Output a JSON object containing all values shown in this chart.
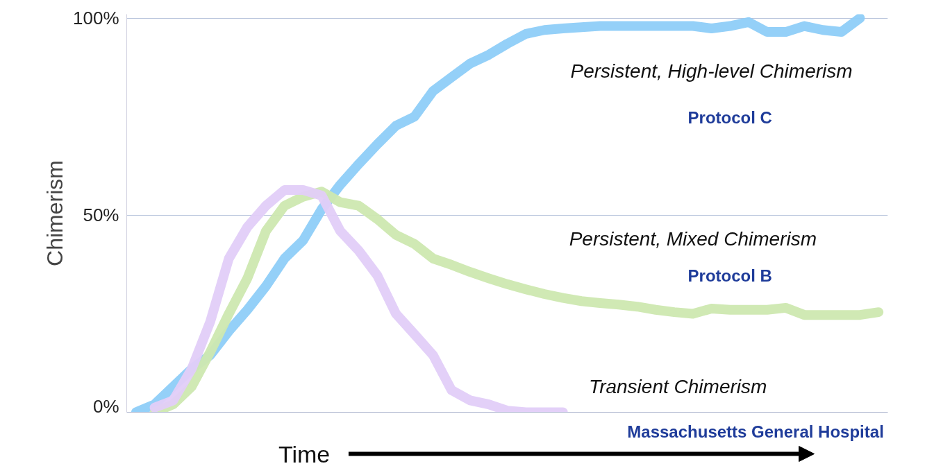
{
  "chart_data": {
    "type": "line",
    "ylabel": "Chimerism",
    "xlabel": "Time",
    "categories": [
      null,
      null,
      null,
      null,
      null,
      null,
      null,
      null,
      null,
      null,
      null,
      null,
      null,
      null,
      null,
      null,
      null,
      null,
      null,
      null,
      null,
      null,
      null,
      null,
      null,
      null,
      null,
      null,
      null,
      null,
      null,
      null,
      null,
      null,
      null,
      null,
      null,
      null,
      null,
      null,
      null
    ],
    "series": [
      {
        "name": "Persistent, High-level Chimerism",
        "color": "#8ecdf8",
        "values": [
          0,
          2,
          6.5,
          11,
          14.5,
          20.6,
          26,
          32,
          39,
          43.6,
          51.5,
          57.7,
          63,
          68,
          72.7,
          75,
          81.5,
          85,
          88.5,
          90.7,
          93.5,
          96,
          97,
          97.4,
          97.7,
          98,
          98,
          98,
          98,
          98,
          98,
          97.4,
          98,
          99,
          96.5,
          96.5,
          98,
          97,
          96.5,
          100,
          null
        ]
      },
      {
        "name": "Persistent, Mixed Chimerism",
        "color": "#cde8b0",
        "values": [
          null,
          0,
          2,
          6.5,
          15.3,
          25,
          34,
          46,
          52.4,
          54.7,
          56,
          53.3,
          52.4,
          49,
          45,
          42.7,
          39,
          37.4,
          35.6,
          34,
          32.5,
          31.2,
          30,
          29,
          28.2,
          27.7,
          27.3,
          26.8,
          26,
          25.4,
          25,
          26.3,
          26,
          26,
          26,
          26.5,
          24.7,
          24.7,
          24.7,
          24.7,
          25.4
        ]
      },
      {
        "name": "Transient Chimerism",
        "color": "#e2cdf8",
        "values": [
          null,
          1.2,
          3,
          11,
          23,
          39,
          47,
          52.4,
          56.4,
          56.4,
          55,
          46,
          41,
          34.7,
          25,
          19.8,
          14.5,
          5.6,
          3,
          2,
          0.4,
          0,
          0,
          0,
          null,
          null,
          null,
          null,
          null,
          null,
          null,
          null,
          null,
          null,
          null,
          null,
          null,
          null,
          null,
          null,
          null
        ]
      }
    ],
    "ylim": [
      0,
      101
    ],
    "yticks": [
      {
        "value": 0,
        "label": "0%"
      },
      {
        "value": 50,
        "label": "50%"
      },
      {
        "value": 100,
        "label": "100%"
      }
    ],
    "grid": "y",
    "tick_labels": "y",
    "annotations": [
      "Protocol C",
      "Protocol B",
      "Massachusetts General Hospital"
    ]
  }
}
